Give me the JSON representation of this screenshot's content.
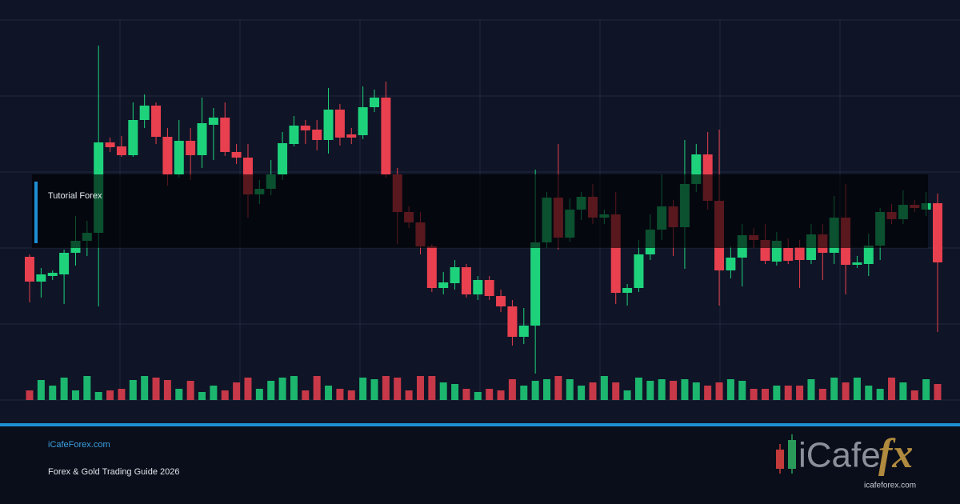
{
  "chart_data": {
    "type": "candlestick",
    "open": [
      179,
      148,
      155,
      157,
      184,
      199,
      209,
      322,
      317,
      306,
      350,
      368,
      329,
      282,
      324,
      306,
      344,
      353,
      310,
      303,
      257,
      264,
      282,
      320,
      343,
      338,
      325,
      363,
      332,
      331,
      366,
      378,
      282,
      235,
      222,
      192,
      140,
      146,
      166,
      132,
      150,
      130,
      117,
      79,
      93,
      197,
      253,
      203,
      238,
      254,
      228,
      232,
      134,
      140,
      182,
      213,
      242,
      216,
      270,
      307,
      249,
      162,
      178,
      206,
      200,
      173,
      190,
      191,
      175,
      207,
      184,
      228,
      169,
      170,
      193,
      235,
      226,
      244,
      238,
      246
    ],
    "high": [
      182,
      165,
      162,
      188,
      230,
      224,
      443,
      328,
      330,
      372,
      382,
      372,
      340,
      350,
      340,
      378,
      365,
      372,
      320,
      320,
      275,
      300,
      335,
      355,
      350,
      350,
      390,
      370,
      340,
      392,
      388,
      398,
      290,
      242,
      235,
      195,
      160,
      175,
      170,
      155,
      155,
      138,
      125,
      115,
      288,
      260,
      320,
      252,
      260,
      270,
      238,
      260,
      145,
      200,
      232,
      282,
      250,
      325,
      320,
      335,
      338,
      192,
      220,
      215,
      220,
      210,
      202,
      200,
      220,
      220,
      255,
      270,
      180,
      208,
      240,
      245,
      262,
      250,
      260,
      258
    ],
    "low": [
      122,
      128,
      150,
      120,
      168,
      180,
      117,
      310,
      304,
      304,
      340,
      320,
      268,
      278,
      275,
      290,
      300,
      305,
      295,
      228,
      245,
      256,
      275,
      317,
      320,
      312,
      308,
      318,
      320,
      326,
      360,
      278,
      195,
      215,
      182,
      135,
      132,
      138,
      128,
      125,
      125,
      110,
      68,
      70,
      33,
      190,
      188,
      198,
      225,
      220,
      220,
      120,
      118,
      135,
      175,
      200,
      180,
      164,
      260,
      238,
      118,
      152,
      142,
      190,
      170,
      168,
      170,
      140,
      170,
      150,
      170,
      132,
      165,
      155,
      175,
      220,
      220,
      235,
      230,
      85
    ],
    "close": [
      148,
      157,
      159,
      184,
      199,
      209,
      322,
      316,
      306,
      350,
      368,
      329,
      282,
      324,
      306,
      346,
      353,
      310,
      303,
      257,
      264,
      282,
      321,
      343,
      337,
      325,
      363,
      328,
      328,
      366,
      378,
      282,
      235,
      222,
      192,
      140,
      147,
      166,
      132,
      150,
      130,
      117,
      79,
      93,
      197,
      253,
      203,
      238,
      254,
      228,
      232,
      134,
      140,
      182,
      213,
      242,
      216,
      270,
      307,
      249,
      162,
      178,
      206,
      200,
      174,
      199,
      174,
      175,
      207,
      184,
      228,
      169,
      172,
      193,
      235,
      226,
      244,
      240,
      246,
      172
    ],
    "volume": [
      12,
      25,
      18,
      28,
      12,
      30,
      10,
      12,
      14,
      25,
      30,
      28,
      25,
      14,
      24,
      10,
      18,
      12,
      22,
      28,
      14,
      24,
      28,
      30,
      12,
      30,
      18,
      14,
      12,
      28,
      26,
      30,
      28,
      12,
      30,
      30,
      22,
      20,
      14,
      10,
      14,
      12,
      26,
      18,
      24,
      26,
      30,
      26,
      18,
      22,
      30,
      22,
      12,
      28,
      24,
      26,
      24,
      26,
      22,
      18,
      22,
      26,
      24,
      14,
      14,
      18,
      18,
      18,
      26,
      14,
      28,
      22,
      28,
      18,
      14,
      28,
      22,
      12,
      26,
      20
    ],
    "ylim": [
      0,
      475
    ],
    "up_color": "#1ed27c",
    "down_color": "#e8404f"
  },
  "overlay_label": "Tutorial Forex",
  "footer": {
    "site": "iCafeForex.com",
    "tagline": "Forex & Gold Trading Guide 2026"
  },
  "logo": {
    "name": "iCafe",
    "fx": "fx",
    "url": "icafeforex.com"
  }
}
